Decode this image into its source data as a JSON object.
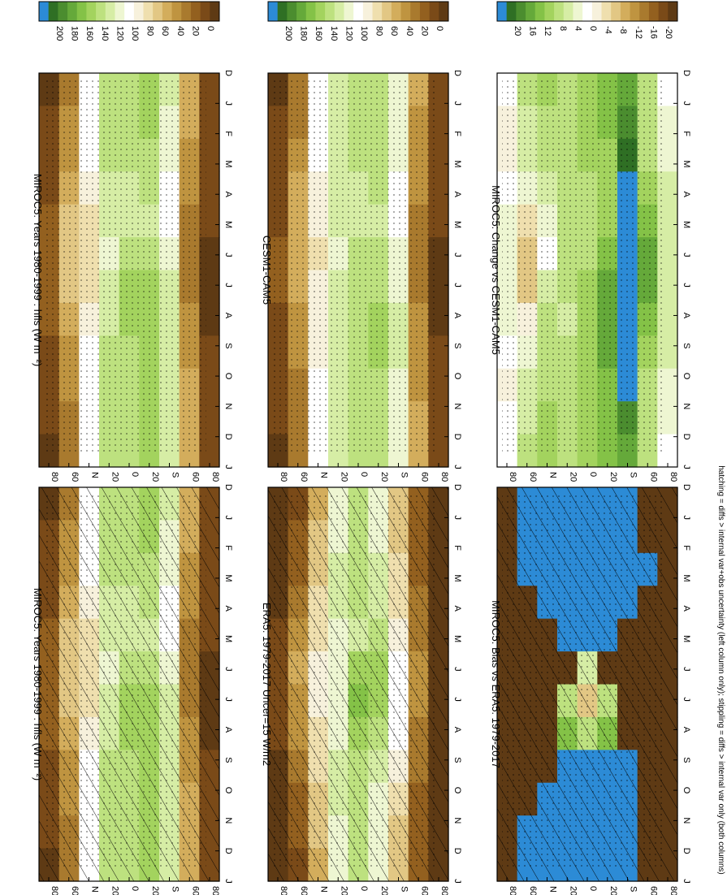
{
  "footnote": "hatching = diffs > internal var+obs uncertainty (left column only); stippling = diffs > internal var only (both columns)",
  "colors": {
    "field_scale": [
      "#5e3a14",
      "#7a4a18",
      "#93601f",
      "#a97a2e",
      "#bf9440",
      "#d3ad5c",
      "#e2c784",
      "#efdfae",
      "#f7f1dc",
      "#ffffff",
      "#eef6d2",
      "#d6eda5",
      "#bde17f",
      "#a3d35e",
      "#84c247",
      "#65a93a",
      "#4b8d2f",
      "#2f6f24",
      "#2c8bd6"
    ],
    "diff_scale": [
      "#5e3a14",
      "#7a4a18",
      "#93601f",
      "#a97a2e",
      "#bf9440",
      "#d3ad5c",
      "#e2c784",
      "#efdfae",
      "#f7f1dc",
      "#ffffff",
      "#eef6d2",
      "#d6eda5",
      "#bde17f",
      "#a3d35e",
      "#84c247",
      "#65a93a",
      "#4b8d2f",
      "#2f6f24",
      "#2c8bd6"
    ]
  },
  "chart_data": [
    {
      "type": "heatmap",
      "id": "p1",
      "title": "MIROC5: Years 1980-1999 : hfls (W m⁻²)",
      "x_ticks": [
        "D",
        "J",
        "F",
        "M",
        "A",
        "M",
        "J",
        "J",
        "A",
        "S",
        "O",
        "N",
        "D",
        "J"
      ],
      "y_ticks": [
        "80",
        "60",
        "N",
        "20",
        "0",
        "20",
        "S",
        "60",
        "80"
      ],
      "colorbar_ticks": [
        "200",
        "180",
        "160",
        "140",
        "120",
        "100",
        "80",
        "60",
        "40",
        "20",
        "0"
      ],
      "scale": "field",
      "hatching": true,
      "stippling": true,
      "z": [
        [
          8,
          12,
          15,
          20,
          22,
          25,
          25,
          22,
          20,
          15,
          12,
          8
        ],
        [
          40,
          45,
          50,
          60,
          70,
          70,
          65,
          55,
          50,
          45,
          40,
          38
        ],
        [
          100,
          100,
          100,
          90,
          80,
          75,
          80,
          85,
          95,
          100,
          100,
          100
        ],
        [
          130,
          130,
          130,
          125,
          120,
          115,
          120,
          125,
          130,
          130,
          130,
          130
        ],
        [
          135,
          135,
          130,
          125,
          120,
          130,
          140,
          140,
          135,
          135,
          135,
          135
        ],
        [
          140,
          140,
          135,
          130,
          125,
          130,
          140,
          145,
          140,
          140,
          140,
          140
        ],
        [
          120,
          115,
          110,
          105,
          105,
          110,
          120,
          125,
          120,
          120,
          120,
          120
        ],
        [
          60,
          55,
          50,
          45,
          40,
          40,
          40,
          45,
          50,
          55,
          60,
          60
        ],
        [
          20,
          20,
          18,
          15,
          12,
          10,
          10,
          10,
          12,
          15,
          18,
          20
        ]
      ]
    },
    {
      "type": "heatmap",
      "id": "p2",
      "title": "MIROC5: Years 1980-1999 : hfls (W m⁻²)",
      "x_ticks": [
        "D",
        "J",
        "F",
        "M",
        "A",
        "M",
        "J",
        "J",
        "A",
        "S",
        "O",
        "N",
        "D",
        "J"
      ],
      "y_ticks": [
        "80",
        "60",
        "N",
        "20",
        "0",
        "20",
        "S",
        "60",
        "80"
      ],
      "colorbar_ticks": [
        "200",
        "180",
        "160",
        "140",
        "120",
        "100",
        "80",
        "60",
        "40",
        "20",
        "0"
      ],
      "scale": "field",
      "hatching": false,
      "stippling": true,
      "z": [
        [
          8,
          12,
          15,
          20,
          22,
          25,
          25,
          22,
          20,
          15,
          12,
          8
        ],
        [
          40,
          45,
          50,
          60,
          70,
          70,
          65,
          55,
          50,
          45,
          40,
          38
        ],
        [
          100,
          100,
          100,
          90,
          80,
          75,
          80,
          85,
          95,
          100,
          100,
          100
        ],
        [
          130,
          130,
          130,
          125,
          120,
          115,
          120,
          125,
          130,
          130,
          130,
          130
        ],
        [
          135,
          135,
          130,
          125,
          120,
          130,
          140,
          140,
          135,
          135,
          135,
          135
        ],
        [
          140,
          140,
          135,
          130,
          125,
          130,
          140,
          145,
          140,
          140,
          140,
          140
        ],
        [
          120,
          115,
          110,
          105,
          105,
          110,
          120,
          125,
          120,
          120,
          120,
          120
        ],
        [
          60,
          55,
          50,
          45,
          40,
          40,
          40,
          45,
          50,
          55,
          60,
          60
        ],
        [
          20,
          20,
          18,
          15,
          12,
          10,
          10,
          10,
          12,
          15,
          18,
          20
        ]
      ]
    },
    {
      "type": "heatmap",
      "id": "p3",
      "title": "ERA5: 1979-2017 Uncer=15 W/m2",
      "x_ticks": [
        "D",
        "J",
        "F",
        "M",
        "A",
        "M",
        "J",
        "J",
        "A",
        "S",
        "O",
        "N",
        "D",
        "J"
      ],
      "y_ticks": [
        "80",
        "60",
        "N",
        "20",
        "0",
        "20",
        "S",
        "60",
        "80"
      ],
      "colorbar_ticks": [
        "200",
        "180",
        "160",
        "140",
        "120",
        "100",
        "80",
        "60",
        "40",
        "20",
        "0"
      ],
      "scale": "field",
      "hatching": true,
      "stippling": true,
      "z": [
        [
          5,
          5,
          8,
          10,
          12,
          15,
          15,
          12,
          10,
          8,
          5,
          5
        ],
        [
          20,
          25,
          30,
          40,
          50,
          55,
          50,
          45,
          40,
          30,
          25,
          20
        ],
        [
          60,
          65,
          70,
          75,
          80,
          85,
          85,
          80,
          75,
          70,
          65,
          60
        ],
        [
          110,
          115,
          120,
          120,
          115,
          110,
          110,
          115,
          120,
          120,
          115,
          110
        ],
        [
          130,
          135,
          135,
          130,
          125,
          140,
          150,
          145,
          135,
          130,
          130,
          130
        ],
        [
          110,
          115,
          120,
          125,
          130,
          140,
          140,
          130,
          120,
          115,
          110,
          110
        ],
        [
          70,
          70,
          75,
          80,
          90,
          100,
          105,
          100,
          90,
          80,
          70,
          70
        ],
        [
          30,
          30,
          30,
          35,
          40,
          45,
          45,
          40,
          35,
          30,
          30,
          30
        ],
        [
          10,
          10,
          10,
          10,
          10,
          10,
          10,
          10,
          10,
          10,
          10,
          10
        ]
      ]
    },
    {
      "type": "heatmap",
      "id": "p4",
      "title": "CESM1-CAM5",
      "x_ticks": [
        "D",
        "J",
        "F",
        "M",
        "A",
        "M",
        "J",
        "J",
        "A",
        "S",
        "O",
        "N",
        "D",
        "J"
      ],
      "y_ticks": [
        "80",
        "60",
        "N",
        "20",
        "0",
        "20",
        "S",
        "60",
        "80"
      ],
      "colorbar_ticks": [
        "200",
        "180",
        "160",
        "140",
        "120",
        "100",
        "80",
        "60",
        "40",
        "20",
        "0"
      ],
      "scale": "field",
      "hatching": false,
      "stippling": true,
      "z": [
        [
          10,
          12,
          15,
          18,
          20,
          22,
          22,
          20,
          18,
          15,
          12,
          10
        ],
        [
          35,
          40,
          48,
          55,
          60,
          62,
          60,
          52,
          45,
          40,
          35,
          33
        ],
        [
          95,
          95,
          95,
          90,
          85,
          82,
          85,
          88,
          92,
          95,
          95,
          95
        ],
        [
          125,
          125,
          125,
          122,
          118,
          115,
          118,
          122,
          125,
          125,
          125,
          125
        ],
        [
          130,
          130,
          128,
          125,
          122,
          128,
          135,
          135,
          132,
          130,
          130,
          130
        ],
        [
          135,
          135,
          132,
          128,
          125,
          128,
          135,
          140,
          138,
          135,
          135,
          135
        ],
        [
          115,
          112,
          108,
          105,
          105,
          108,
          115,
          120,
          118,
          115,
          115,
          115
        ],
        [
          55,
          52,
          48,
          45,
          42,
          42,
          42,
          45,
          48,
          52,
          55,
          55
        ],
        [
          18,
          18,
          16,
          14,
          12,
          10,
          10,
          10,
          12,
          14,
          16,
          18
        ]
      ]
    },
    {
      "type": "heatmap",
      "id": "p5",
      "title": "MIROC5: Bias vs ERA5: 1979-2017",
      "x_ticks": [
        "D",
        "J",
        "F",
        "M",
        "A",
        "M",
        "J",
        "J",
        "A",
        "S",
        "O",
        "N",
        "D",
        "J"
      ],
      "y_ticks": [
        "80",
        "60",
        "N",
        "20",
        "0",
        "20",
        "S",
        "60",
        "80"
      ],
      "colorbar_ticks": [
        "20",
        "16",
        "12",
        "8",
        "4",
        "0",
        "-4",
        "-8",
        "-12",
        "-16",
        "-20"
      ],
      "scale": "diff",
      "hatching": true,
      "stippling": true,
      "z": [
        [
          -22,
          -22,
          -22,
          -22,
          -22,
          -22,
          -22,
          -22,
          -22,
          -22,
          -22,
          -22
        ],
        [
          22,
          22,
          22,
          -22,
          -22,
          -22,
          -22,
          -22,
          -22,
          -22,
          22,
          22
        ],
        [
          22,
          22,
          22,
          22,
          -22,
          -22,
          -22,
          -22,
          -22,
          22,
          22,
          22
        ],
        [
          22,
          22,
          22,
          22,
          22,
          -22,
          8,
          12,
          22,
          22,
          22,
          22
        ],
        [
          22,
          22,
          22,
          22,
          22,
          4,
          -6,
          8,
          22,
          22,
          22,
          22
        ],
        [
          22,
          22,
          22,
          22,
          22,
          -22,
          6,
          12,
          22,
          22,
          22,
          22
        ],
        [
          22,
          22,
          22,
          22,
          -22,
          -22,
          -22,
          -22,
          22,
          22,
          22,
          22
        ],
        [
          -22,
          -22,
          22,
          -22,
          -22,
          -22,
          -22,
          -22,
          -22,
          -22,
          -22,
          -22
        ],
        [
          -22,
          -22,
          -22,
          -22,
          -22,
          -22,
          -22,
          -22,
          -22,
          -22,
          -22,
          -22
        ]
      ]
    },
    {
      "type": "heatmap",
      "id": "p6",
      "title": "MIROC5: Change vs CESM1-CAM5",
      "x_ticks": [
        "D",
        "J",
        "F",
        "M",
        "A",
        "M",
        "J",
        "J",
        "A",
        "S",
        "O",
        "N",
        "D",
        "J"
      ],
      "y_ticks": [
        "80",
        "60",
        "N",
        "20",
        "0",
        "20",
        "S",
        "60",
        "80"
      ],
      "colorbar_ticks": [
        "20",
        "16",
        "12",
        "8",
        "4",
        "0",
        "-4",
        "-8",
        "-12",
        "-16",
        "-20"
      ],
      "scale": "diff",
      "hatching": false,
      "stippling": true,
      "z": [
        [
          0,
          -2,
          -3,
          0,
          2,
          3,
          3,
          2,
          0,
          -2,
          0,
          0
        ],
        [
          6,
          5,
          4,
          2,
          -4,
          -8,
          -6,
          -2,
          2,
          4,
          5,
          6
        ],
        [
          10,
          8,
          6,
          4,
          2,
          0,
          4,
          6,
          8,
          8,
          10,
          10
        ],
        [
          8,
          8,
          6,
          6,
          8,
          8,
          6,
          4,
          6,
          8,
          8,
          8
        ],
        [
          10,
          10,
          10,
          8,
          6,
          8,
          10,
          10,
          10,
          10,
          10,
          10
        ],
        [
          12,
          12,
          10,
          10,
          10,
          12,
          14,
          14,
          14,
          12,
          12,
          12
        ],
        [
          14,
          16,
          18,
          22,
          22,
          22,
          22,
          22,
          22,
          20,
          16,
          14
        ],
        [
          6,
          6,
          8,
          10,
          12,
          14,
          14,
          12,
          10,
          8,
          6,
          6
        ],
        [
          0,
          2,
          2,
          4,
          4,
          4,
          4,
          4,
          4,
          2,
          2,
          0
        ]
      ]
    }
  ]
}
